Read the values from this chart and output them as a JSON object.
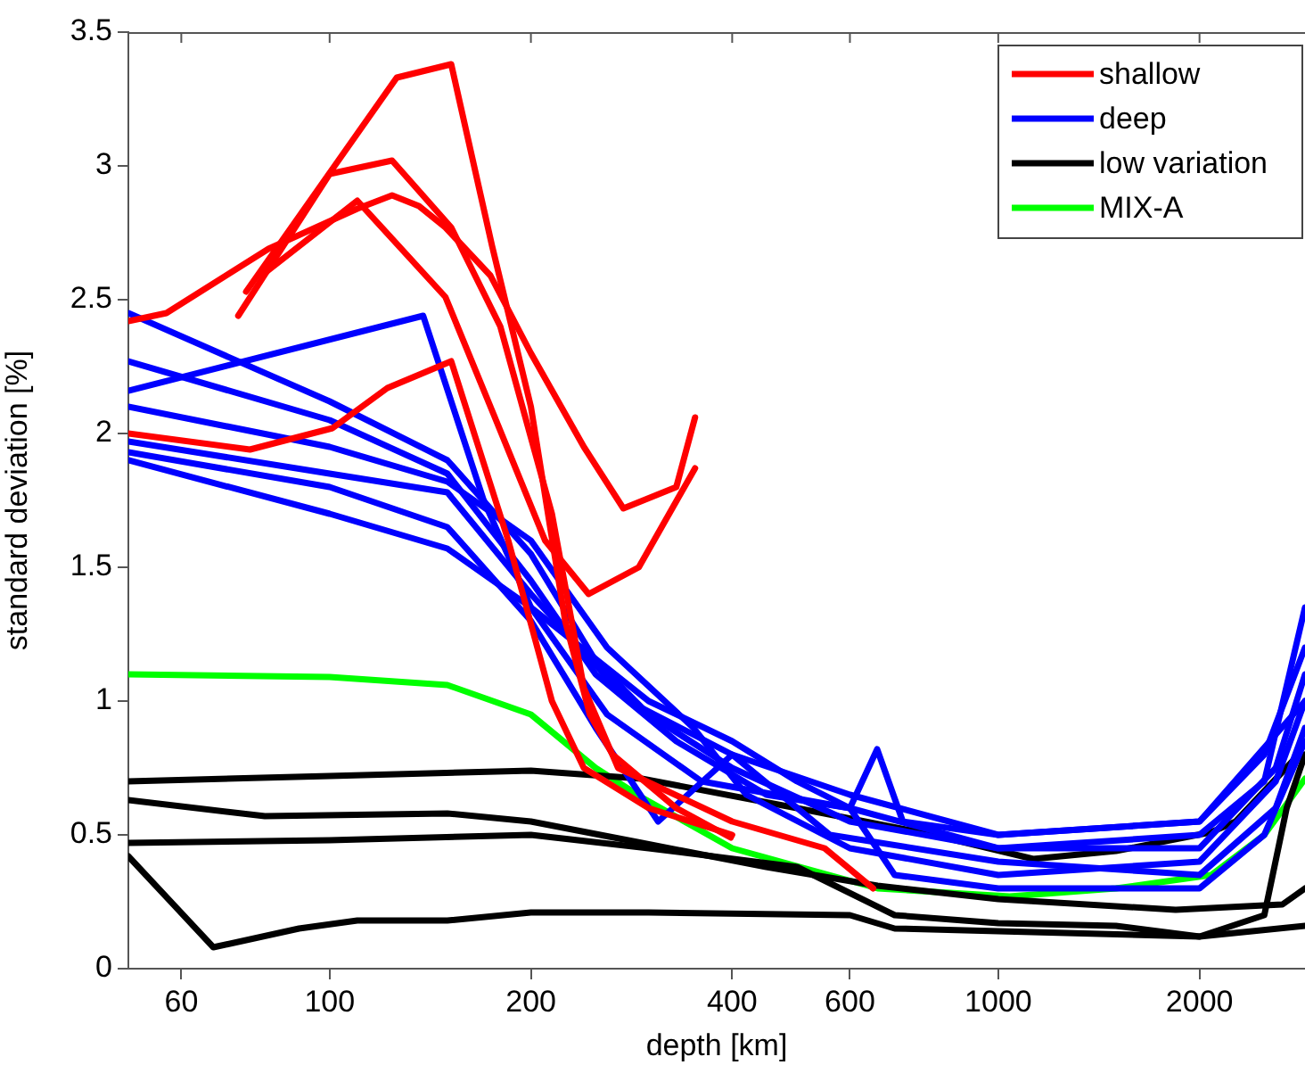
{
  "chart_data": {
    "type": "line",
    "xlabel": "depth [km]",
    "ylabel": "standard deviation [%]",
    "log": "x",
    "xlim": [
      50,
      2876
    ],
    "xticks": [
      60,
      100,
      200,
      400,
      600,
      1000,
      2000
    ],
    "ylim": [
      0,
      3.5
    ],
    "yticks": [
      0,
      0.5,
      1,
      1.5,
      2,
      2.5,
      3,
      3.5
    ],
    "grid": false,
    "legend": "top right",
    "marker": "none",
    "line_style": "solid",
    "series": [
      {
        "name": "shallow",
        "color": "#ff0000",
        "x": [
          50,
          76,
          101,
          122,
          152,
          185,
          215,
          240,
          300,
          400
        ],
        "values": [
          2.0,
          1.94,
          2.02,
          2.17,
          2.27,
          1.6,
          1.0,
          0.75,
          0.6,
          0.5
        ]
      },
      {
        "color": "#ff0000",
        "x": [
          75,
          126,
          152,
          175,
          200,
          225,
          245,
          265,
          330,
          398
        ],
        "values": [
          2.53,
          3.33,
          3.38,
          2.7,
          2.1,
          1.3,
          0.95,
          0.8,
          0.6,
          0.49
        ]
      },
      {
        "color": "#ff0000",
        "x": [
          73,
          100,
          124,
          152,
          180,
          215,
          240,
          270,
          400,
          550,
          650
        ],
        "values": [
          2.44,
          2.97,
          3.02,
          2.77,
          2.4,
          1.7,
          1.05,
          0.75,
          0.55,
          0.45,
          0.3
        ]
      },
      {
        "color": "#ff0000",
        "x": [
          50,
          57,
          81,
          110,
          124,
          136,
          149,
          174,
          200,
          240,
          275,
          330,
          352
        ],
        "values": [
          2.42,
          2.45,
          2.69,
          2.84,
          2.89,
          2.85,
          2.77,
          2.59,
          2.3,
          1.95,
          1.72,
          1.8,
          2.06
        ]
      },
      {
        "color": "#ff0000",
        "x": [
          80,
          110,
          149,
          176,
          210,
          244,
          290,
          352
        ],
        "values": [
          2.6,
          2.87,
          2.51,
          2.07,
          1.6,
          1.4,
          1.5,
          1.87
        ]
      },
      {
        "name": "deep",
        "color": "#0000ff",
        "x": [
          50,
          100,
          150,
          200,
          250,
          300,
          400,
          600,
          1000,
          2000,
          2500,
          2876
        ],
        "values": [
          2.45,
          2.12,
          1.9,
          1.55,
          1.15,
          0.95,
          0.75,
          0.55,
          0.45,
          0.5,
          0.7,
          1.35
        ]
      },
      {
        "color": "#0000ff",
        "x": [
          50,
          100,
          150,
          200,
          250,
          330,
          450,
          600,
          659,
          720,
          1000,
          2000,
          2500,
          2876
        ],
        "values": [
          2.27,
          2.05,
          1.85,
          1.45,
          1.1,
          0.85,
          0.65,
          0.6,
          0.82,
          0.55,
          0.5,
          0.55,
          0.8,
          1.2
        ]
      },
      {
        "color": "#0000ff",
        "x": [
          50,
          138,
          170,
          200,
          260,
          360,
          600,
          1000,
          2000,
          2600,
          2876
        ],
        "values": [
          2.16,
          2.44,
          1.75,
          1.35,
          0.95,
          0.7,
          0.6,
          0.45,
          0.45,
          0.75,
          1.1
        ]
      },
      {
        "color": "#0000ff",
        "x": [
          50,
          100,
          150,
          200,
          260,
          350,
          420,
          600,
          1000,
          2000,
          2600,
          2876
        ],
        "values": [
          2.1,
          1.95,
          1.82,
          1.6,
          1.2,
          0.9,
          0.65,
          0.45,
          0.35,
          0.4,
          0.7,
          1.0
        ]
      },
      {
        "color": "#0000ff",
        "x": [
          50,
          100,
          150,
          200,
          280,
          400,
          560,
          1000,
          2000,
          2600,
          2876
        ],
        "values": [
          1.97,
          1.85,
          1.78,
          1.4,
          1.0,
          0.8,
          0.5,
          0.4,
          0.35,
          0.6,
          0.9
        ]
      },
      {
        "color": "#0000ff",
        "x": [
          50,
          100,
          150,
          200,
          250,
          310,
          400,
          600,
          1000,
          2000,
          2876
        ],
        "values": [
          1.93,
          1.8,
          1.65,
          1.3,
          0.9,
          0.55,
          0.8,
          0.65,
          0.5,
          0.55,
          1.0
        ]
      },
      {
        "color": "#0000ff",
        "x": [
          50,
          100,
          150,
          200,
          300,
          400,
          500,
          600,
          700,
          1000,
          2000,
          2500,
          2876
        ],
        "values": [
          1.9,
          1.7,
          1.57,
          1.35,
          1.0,
          0.85,
          0.7,
          0.6,
          0.35,
          0.3,
          0.3,
          0.5,
          0.85
        ]
      },
      {
        "name": "low variation",
        "color": "#000000",
        "x": [
          50,
          100,
          200,
          293,
          500,
          800,
          1128,
          1500,
          2082,
          2265,
          2790,
          2876
        ],
        "values": [
          0.7,
          0.72,
          0.74,
          0.71,
          0.6,
          0.5,
          0.41,
          0.44,
          0.51,
          0.55,
          0.79,
          0.8
        ]
      },
      {
        "color": "#000000",
        "x": [
          50,
          80,
          150,
          200,
          293,
          450,
          660,
          1000,
          1842,
          2661,
          2876
        ],
        "values": [
          0.63,
          0.57,
          0.58,
          0.55,
          0.47,
          0.38,
          0.31,
          0.26,
          0.22,
          0.24,
          0.3
        ]
      },
      {
        "color": "#000000",
        "x": [
          50,
          100,
          200,
          300,
          500,
          700,
          1000,
          1500,
          2000,
          2500,
          2700,
          2876
        ],
        "values": [
          0.47,
          0.48,
          0.5,
          0.45,
          0.38,
          0.2,
          0.17,
          0.16,
          0.12,
          0.2,
          0.6,
          0.8
        ]
      },
      {
        "color": "#000000",
        "x": [
          50,
          67,
          90,
          110,
          150,
          200,
          300,
          600,
          700,
          1000,
          2000,
          2876
        ],
        "values": [
          0.42,
          0.08,
          0.15,
          0.18,
          0.18,
          0.21,
          0.21,
          0.2,
          0.15,
          0.14,
          0.12,
          0.16
        ]
      },
      {
        "name": "MIX-A",
        "color": "#00ff00",
        "x": [
          50,
          100,
          150,
          200,
          250,
          293,
          400,
          660,
          1040,
          1500,
          2082,
          2500,
          2876
        ],
        "values": [
          1.1,
          1.09,
          1.06,
          0.95,
          0.75,
          0.64,
          0.45,
          0.3,
          0.27,
          0.3,
          0.35,
          0.5,
          0.71
        ]
      }
    ]
  }
}
